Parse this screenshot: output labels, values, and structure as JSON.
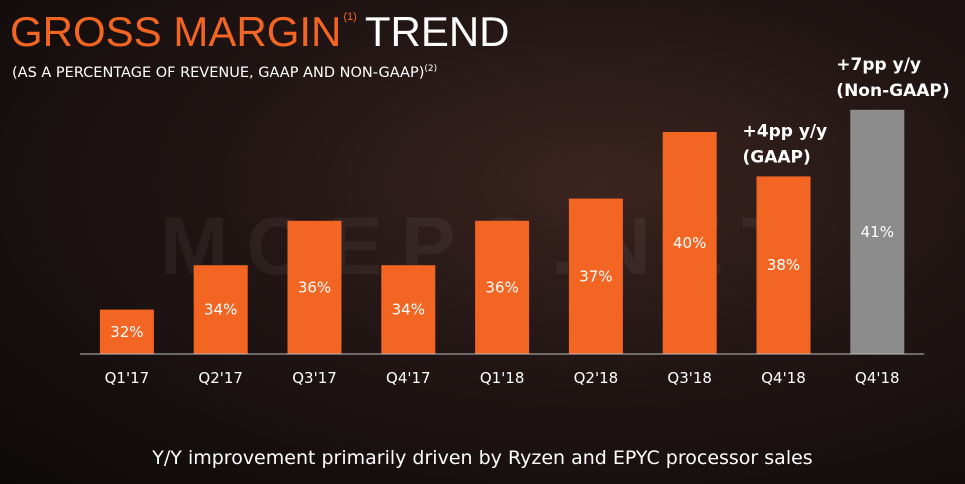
{
  "header": {
    "title_part1": "GROSS MARGIN",
    "title_note": "(1)",
    "title_part2": "TREND",
    "subtitle": "(AS A PERCENTAGE OF REVENUE, GAAP AND NON-GAAP)",
    "subtitle_note": "(2)"
  },
  "watermark": "MOEPC.NET",
  "footer": "Y/Y improvement primarily driven by Ryzen and EPYC processor sales",
  "colors": {
    "gaap_bar": "#f26522",
    "non_gaap_bar": "#8c8c8c"
  },
  "chart_data": {
    "type": "bar",
    "categories": [
      "Q1'17",
      "Q2'17",
      "Q3'17",
      "Q4'17",
      "Q1'18",
      "Q2'18",
      "Q3'18",
      "Q4'18",
      "Q4'18"
    ],
    "values": [
      32,
      34,
      36,
      34,
      36,
      37,
      40,
      38,
      41
    ],
    "labels": [
      "32%",
      "34%",
      "36%",
      "34%",
      "36%",
      "37%",
      "40%",
      "38%",
      "41%"
    ],
    "bar_kind": [
      "gaap",
      "gaap",
      "gaap",
      "gaap",
      "gaap",
      "gaap",
      "gaap",
      "gaap",
      "non-gaap"
    ],
    "ylim": [
      30,
      42
    ],
    "grid": false,
    "annotations": [
      {
        "bar": 7,
        "lines": [
          "+4pp y/y",
          "(GAAP)"
        ]
      },
      {
        "bar": 8,
        "lines": [
          "+7pp y/y",
          "(Non-GAAP)"
        ]
      }
    ]
  }
}
